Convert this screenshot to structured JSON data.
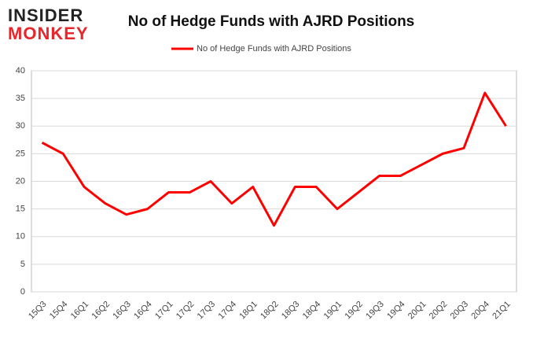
{
  "logo": {
    "line1": "INSIDER",
    "line2": "MONKEY"
  },
  "chart_data": {
    "type": "line",
    "title": "No of Hedge Funds with AJRD Positions",
    "categories": [
      "15Q3",
      "15Q4",
      "16Q1",
      "16Q2",
      "16Q3",
      "16Q4",
      "17Q1",
      "17Q2",
      "17Q3",
      "17Q4",
      "18Q1",
      "18Q2",
      "18Q3",
      "18Q4",
      "19Q1",
      "19Q2",
      "19Q3",
      "19Q4",
      "20Q1",
      "20Q2",
      "20Q3",
      "20Q4",
      "21Q1"
    ],
    "series": [
      {
        "name": "No of Hedge Funds with AJRD Positions",
        "color": "#ff0000",
        "values": [
          27,
          25,
          19,
          16,
          14,
          15,
          18,
          18,
          20,
          16,
          19,
          12,
          19,
          19,
          15,
          18,
          21,
          21,
          23,
          25,
          26,
          36,
          30
        ]
      }
    ],
    "ylim": [
      0,
      40
    ],
    "yticks": [
      0,
      5,
      10,
      15,
      20,
      25,
      30,
      35,
      40
    ],
    "grid": true,
    "legend": "top"
  }
}
